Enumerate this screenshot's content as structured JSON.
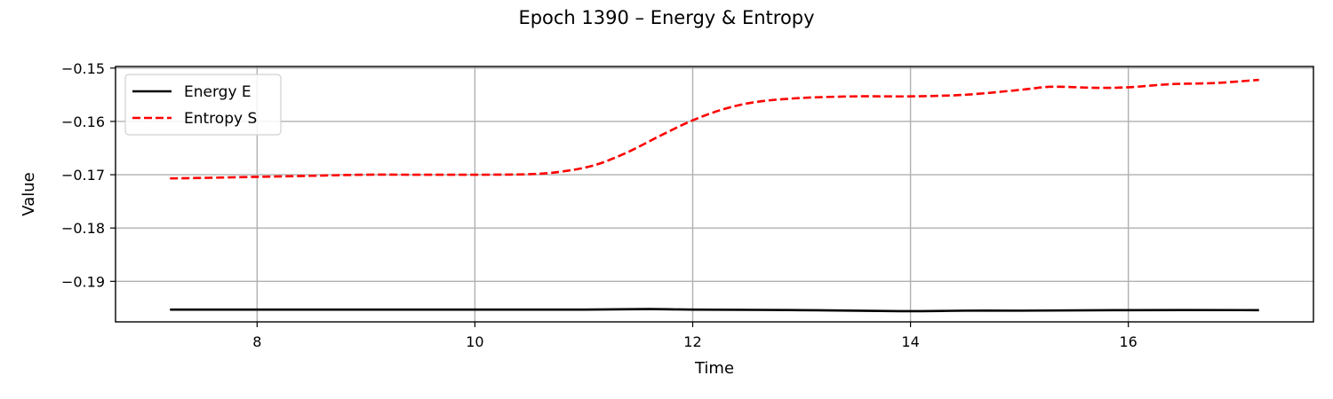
{
  "chart_data": {
    "type": "line",
    "title": "Epoch 1390 – Energy & Entropy",
    "xlabel": "Time",
    "ylabel": "Value",
    "xlim": [
      6.7,
      17.7
    ],
    "ylim": [
      -0.1976,
      -0.1497
    ],
    "xticks": [
      8,
      10,
      12,
      14,
      16
    ],
    "xtick_labels": [
      "8",
      "10",
      "12",
      "14",
      "16"
    ],
    "yticks": [
      -0.15,
      -0.16,
      -0.17,
      -0.18,
      -0.19
    ],
    "ytick_labels": [
      "−0.15",
      "−0.16",
      "−0.17",
      "−0.18",
      "−0.19"
    ],
    "grid": true,
    "legend_position": "top-left",
    "series": [
      {
        "name": "Energy E",
        "color": "#000000",
        "style": "solid",
        "x": [
          7.2,
          8.0,
          9.0,
          10.0,
          11.0,
          11.6,
          12.0,
          13.0,
          13.9,
          14.5,
          15.0,
          16.0,
          17.2
        ],
        "y": [
          -0.1953,
          -0.1953,
          -0.1953,
          -0.1953,
          -0.1953,
          -0.1952,
          -0.1953,
          -0.1954,
          -0.1956,
          -0.1955,
          -0.1955,
          -0.1954,
          -0.1954
        ]
      },
      {
        "name": "Entropy S",
        "color": "#ff0000",
        "style": "dashed",
        "x": [
          7.2,
          7.5,
          8.0,
          8.5,
          9.0,
          9.5,
          10.0,
          10.5,
          10.8,
          11.1,
          11.4,
          11.7,
          12.0,
          12.3,
          12.6,
          13.0,
          13.5,
          14.0,
          14.5,
          15.0,
          15.3,
          15.7,
          16.0,
          16.4,
          16.8,
          17.2
        ],
        "y": [
          -0.1707,
          -0.1706,
          -0.1704,
          -0.1702,
          -0.17,
          -0.17,
          -0.17,
          -0.1699,
          -0.1694,
          -0.1682,
          -0.1658,
          -0.1627,
          -0.1598,
          -0.1576,
          -0.1563,
          -0.1556,
          -0.1553,
          -0.1553,
          -0.155,
          -0.1541,
          -0.1535,
          -0.1537,
          -0.1536,
          -0.153,
          -0.1528,
          -0.1522
        ]
      }
    ]
  }
}
